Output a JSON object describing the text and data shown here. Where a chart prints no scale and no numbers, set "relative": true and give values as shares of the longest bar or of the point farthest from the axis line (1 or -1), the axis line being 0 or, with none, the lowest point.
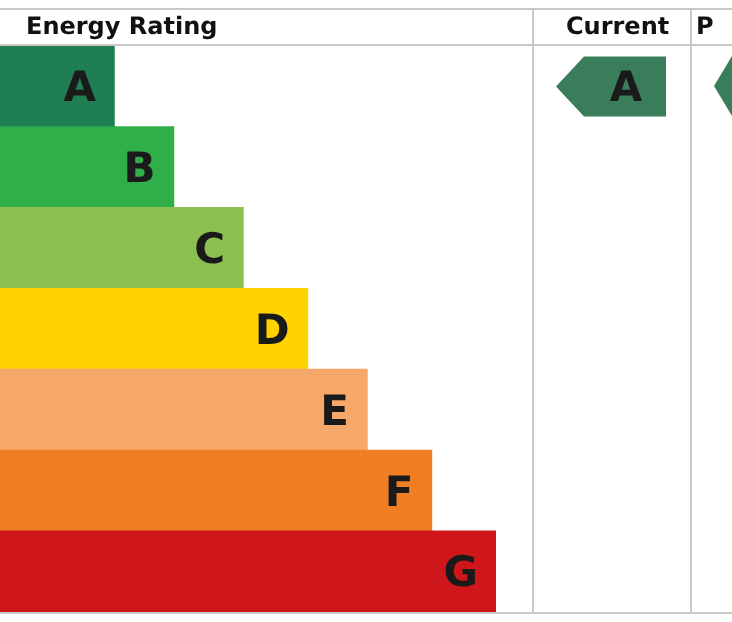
{
  "chart_data": {
    "type": "bar",
    "orientation": "horizontal",
    "relative": true,
    "title": "Energy Rating",
    "categories": [
      "A",
      "B",
      "C",
      "D",
      "E",
      "F",
      "G"
    ],
    "values": [
      0.23,
      0.35,
      0.49,
      0.62,
      0.74,
      0.87,
      1
    ],
    "colors": [
      "#1f7f52",
      "#2fae4a",
      "#8cc152",
      "#ffd200",
      "#f6a86b",
      "#ef7f22",
      "#cf161b"
    ],
    "annotations": [
      "Current",
      "P",
      "A"
    ]
  }
}
